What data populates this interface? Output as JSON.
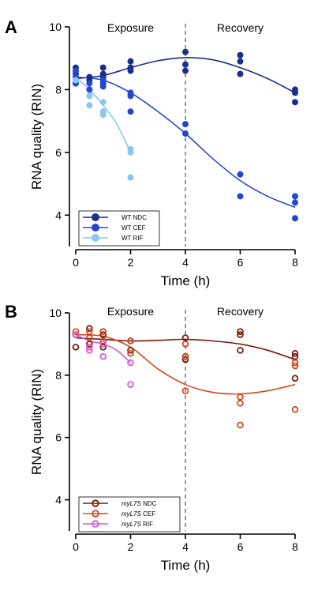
{
  "chart_data": [
    {
      "type": "scatter",
      "panel": "A",
      "xlabel": "Time (h)",
      "ylabel": "RNA quality (RIN)",
      "xlim": [
        0,
        8
      ],
      "ylim": [
        3,
        10
      ],
      "xticks": [
        0,
        2,
        4,
        6,
        8
      ],
      "yticks": [
        4,
        6,
        8,
        10
      ],
      "phase_labels": [
        "Exposure",
        "Recovery"
      ],
      "divider_x": 4,
      "legend_position": "bottom-left",
      "marker": "filled",
      "series": [
        {
          "name": "WT NDC",
          "color": "#1a2f8a",
          "points": [
            [
              0,
              8.2
            ],
            [
              0,
              8.5
            ],
            [
              0,
              8.7
            ],
            [
              0.5,
              8.3
            ],
            [
              0.5,
              8.4
            ],
            [
              1,
              8.5
            ],
            [
              1,
              8.7
            ],
            [
              1,
              8.4
            ],
            [
              2,
              8.6
            ],
            [
              2,
              8.9
            ],
            [
              2,
              8.7
            ],
            [
              4,
              9.2
            ],
            [
              4,
              8.6
            ],
            [
              4,
              8.8
            ],
            [
              6,
              9.1
            ],
            [
              6,
              8.9
            ],
            [
              6,
              8.5
            ],
            [
              8,
              8.0
            ],
            [
              8,
              7.9
            ],
            [
              8,
              7.6
            ]
          ],
          "fit": [
            [
              0,
              8.35
            ],
            [
              1,
              8.45
            ],
            [
              2,
              8.7
            ],
            [
              3,
              8.92
            ],
            [
              4,
              9.02
            ],
            [
              5,
              8.95
            ],
            [
              6,
              8.7
            ],
            [
              7,
              8.35
            ],
            [
              8,
              7.9
            ]
          ]
        },
        {
          "name": "WT CEF",
          "color": "#2347d1",
          "points": [
            [
              0,
              8.2
            ],
            [
              0,
              8.4
            ],
            [
              0,
              8.6
            ],
            [
              0.5,
              8.0
            ],
            [
              0.5,
              8.2
            ],
            [
              1,
              8.3
            ],
            [
              1,
              8.1
            ],
            [
              1,
              8.2
            ],
            [
              2,
              7.8
            ],
            [
              2,
              7.9
            ],
            [
              2,
              7.3
            ],
            [
              4,
              6.9
            ],
            [
              4,
              6.6
            ],
            [
              6,
              5.3
            ],
            [
              6,
              4.6
            ],
            [
              8,
              4.6
            ],
            [
              8,
              4.4
            ],
            [
              8,
              3.9
            ]
          ],
          "fit": [
            [
              0,
              8.4
            ],
            [
              1,
              8.3
            ],
            [
              2,
              7.9
            ],
            [
              3,
              7.3
            ],
            [
              4,
              6.6
            ],
            [
              5,
              5.8
            ],
            [
              6,
              5.1
            ],
            [
              7,
              4.6
            ],
            [
              8,
              4.25
            ]
          ]
        },
        {
          "name": "WT RIF",
          "color": "#88c8ee",
          "points": [
            [
              0,
              8.3
            ],
            [
              0.5,
              7.5
            ],
            [
              0.5,
              7.8
            ],
            [
              1,
              7.6
            ],
            [
              1,
              7.3
            ],
            [
              1,
              7.2
            ],
            [
              2,
              6.1
            ],
            [
              2,
              6.0
            ],
            [
              2,
              5.2
            ]
          ],
          "fit": [
            [
              0,
              8.4
            ],
            [
              0.5,
              8.0
            ],
            [
              1,
              7.5
            ],
            [
              1.5,
              6.9
            ],
            [
              2,
              6.0
            ]
          ]
        }
      ]
    },
    {
      "type": "scatter",
      "panel": "B",
      "xlabel": "Time (h)",
      "ylabel": "RNA quality (RIN)",
      "xlim": [
        0,
        8
      ],
      "ylim": [
        3,
        10
      ],
      "xticks": [
        0,
        2,
        4,
        6,
        8
      ],
      "yticks": [
        4,
        6,
        8,
        10
      ],
      "phase_labels": [
        "Exposure",
        "Recovery"
      ],
      "divider_x": 4,
      "legend_position": "bottom-left",
      "marker": "open",
      "legend_prefix_italic": "myL7S",
      "series": [
        {
          "name": "NDC",
          "color": "#7a1a0a",
          "points": [
            [
              0,
              8.9
            ],
            [
              0,
              9.3
            ],
            [
              0.5,
              9.0
            ],
            [
              0.5,
              9.5
            ],
            [
              1,
              8.9
            ],
            [
              1,
              9.3
            ],
            [
              1,
              9.4
            ],
            [
              2,
              9.1
            ],
            [
              2,
              8.8
            ],
            [
              4,
              9.2
            ],
            [
              4,
              8.6
            ],
            [
              4,
              8.5
            ],
            [
              6,
              9.4
            ],
            [
              6,
              9.3
            ],
            [
              6,
              8.8
            ],
            [
              8,
              8.7
            ],
            [
              8,
              8.6
            ],
            [
              8,
              7.9
            ]
          ],
          "fit": [
            [
              0,
              9.2
            ],
            [
              1,
              9.15
            ],
            [
              2,
              9.1
            ],
            [
              3,
              9.12
            ],
            [
              4,
              9.15
            ],
            [
              5,
              9.1
            ],
            [
              6,
              9.0
            ],
            [
              7,
              8.8
            ],
            [
              8,
              8.5
            ]
          ]
        },
        {
          "name": "CEF",
          "color": "#d24a22",
          "points": [
            [
              0,
              9.4
            ],
            [
              0,
              9.3
            ],
            [
              0.5,
              9.2
            ],
            [
              0.5,
              9.4
            ],
            [
              1,
              9.4
            ],
            [
              1,
              9.1
            ],
            [
              2,
              8.7
            ],
            [
              2,
              9.1
            ],
            [
              4,
              9.0
            ],
            [
              4,
              8.6
            ],
            [
              4,
              7.5
            ],
            [
              6,
              7.3
            ],
            [
              6,
              7.1
            ],
            [
              6,
              6.4
            ],
            [
              8,
              8.4
            ],
            [
              8,
              8.3
            ],
            [
              8,
              6.9
            ]
          ],
          "fit": [
            [
              0,
              9.3
            ],
            [
              1,
              9.25
            ],
            [
              2,
              8.9
            ],
            [
              3,
              8.2
            ],
            [
              4,
              7.7
            ],
            [
              5,
              7.45
            ],
            [
              6,
              7.4
            ],
            [
              7,
              7.5
            ],
            [
              8,
              7.7
            ]
          ]
        },
        {
          "name": "RIF",
          "color": "#d45ad6",
          "points": [
            [
              0,
              9.3
            ],
            [
              0.5,
              8.8
            ],
            [
              0.5,
              8.9
            ],
            [
              1,
              9.0
            ],
            [
              1,
              8.6
            ],
            [
              2,
              8.4
            ],
            [
              2,
              7.7
            ]
          ],
          "fit": [
            [
              0,
              9.3
            ],
            [
              0.5,
              9.1
            ],
            [
              1,
              9.0
            ],
            [
              1.5,
              8.8
            ],
            [
              2,
              8.4
            ]
          ]
        }
      ]
    }
  ]
}
